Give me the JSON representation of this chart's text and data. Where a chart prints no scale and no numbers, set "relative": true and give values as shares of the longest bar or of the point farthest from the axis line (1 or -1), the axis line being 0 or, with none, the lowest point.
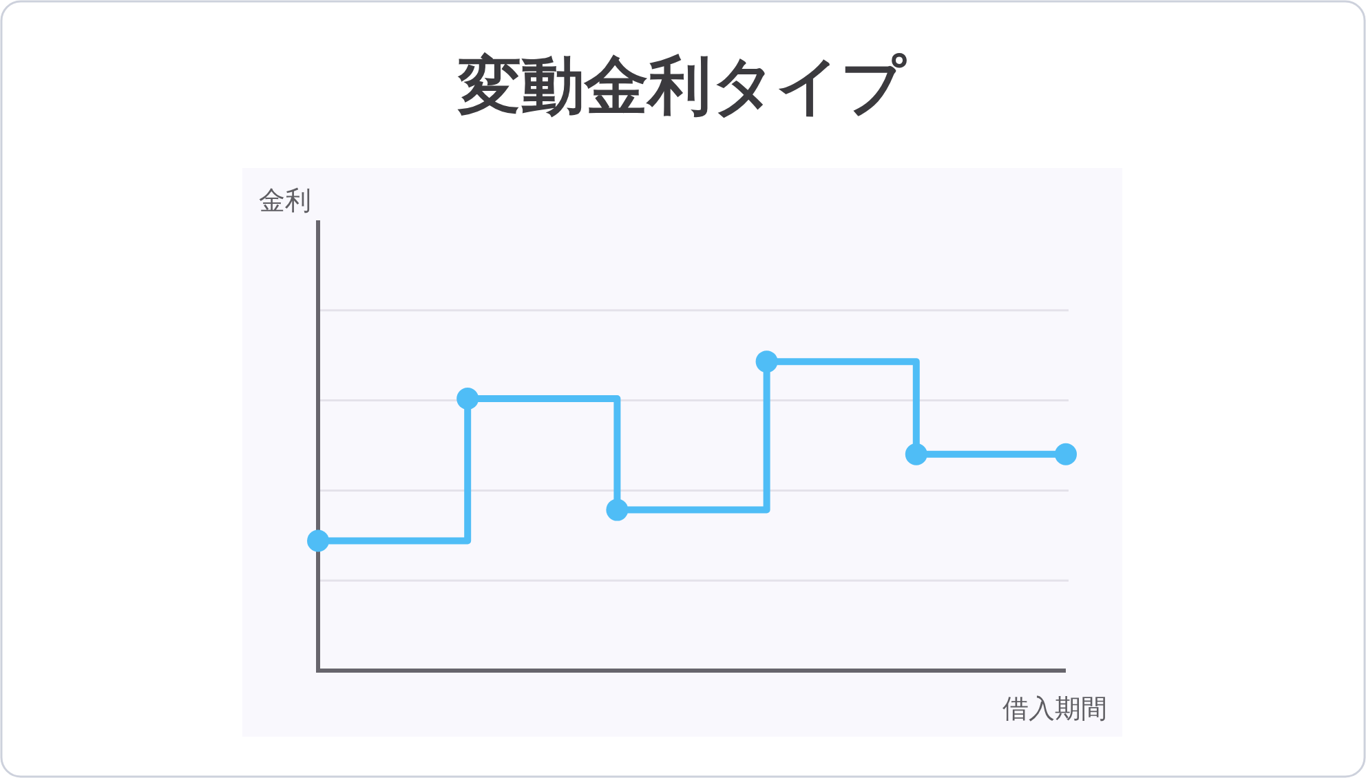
{
  "chart_data": {
    "type": "step",
    "title": "変動金利タイプ",
    "xlabel": "借入期間",
    "annotations": [
      "金利"
    ],
    "categories": [
      null,
      null,
      null,
      null,
      null,
      null
    ],
    "values": [
      0.42,
      0.88,
      0.52,
      1,
      0.7,
      0.7
    ],
    "color": "#4fbdf6",
    "relative": true,
    "grid": "y",
    "marker": "circle",
    "line_style": "solid"
  }
}
